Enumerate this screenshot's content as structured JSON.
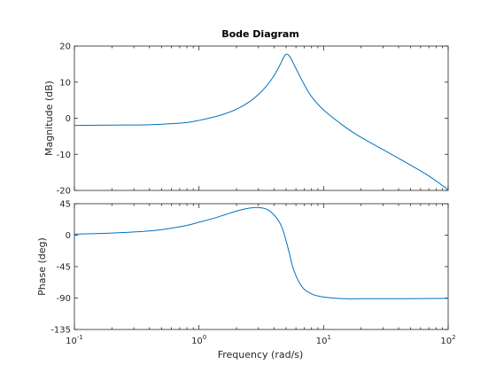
{
  "chart_data": {
    "title": "Bode Diagram",
    "xlabel": "Frequency  (rad/s)",
    "x_scale": "log",
    "xlim": [
      0.1,
      100
    ],
    "x_ticks": [
      {
        "value": 0.1,
        "base": "10",
        "exp": "-1"
      },
      {
        "value": 1,
        "base": "10",
        "exp": "0"
      },
      {
        "value": 10,
        "base": "10",
        "exp": "1"
      },
      {
        "value": 100,
        "base": "10",
        "exp": "2"
      }
    ],
    "series_color": "#0072bd",
    "panels": [
      {
        "type": "line",
        "ylabel": "Magnitude (dB)",
        "ylim": [
          -20,
          20
        ],
        "y_ticks": [
          -20,
          -10,
          0,
          10,
          20
        ],
        "points": [
          [
            0.1,
            -2.0
          ],
          [
            0.2,
            -1.9
          ],
          [
            0.4,
            -1.8
          ],
          [
            0.6,
            -1.5
          ],
          [
            0.8,
            -1.2
          ],
          [
            1.0,
            -0.6
          ],
          [
            1.3,
            0.3
          ],
          [
            1.6,
            1.2
          ],
          [
            2.0,
            2.5
          ],
          [
            2.5,
            4.4
          ],
          [
            3.0,
            6.6
          ],
          [
            3.5,
            9.0
          ],
          [
            4.0,
            11.8
          ],
          [
            4.5,
            15.0
          ],
          [
            4.8,
            17.0
          ],
          [
            5.0,
            17.7
          ],
          [
            5.2,
            17.6
          ],
          [
            5.5,
            16.4
          ],
          [
            6.0,
            13.8
          ],
          [
            7.0,
            9.3
          ],
          [
            8.0,
            6.0
          ],
          [
            10.0,
            2.3
          ],
          [
            15.0,
            -2.5
          ],
          [
            20.0,
            -5.3
          ],
          [
            30.0,
            -8.7
          ],
          [
            50.0,
            -13.0
          ],
          [
            70.0,
            -16.0
          ],
          [
            100.0,
            -19.8
          ]
        ]
      },
      {
        "type": "line",
        "ylabel": "Phase (deg)",
        "ylim": [
          -135,
          45
        ],
        "y_ticks": [
          -135,
          -90,
          -45,
          0,
          45
        ],
        "points": [
          [
            0.1,
            1.5
          ],
          [
            0.2,
            3.0
          ],
          [
            0.4,
            6.0
          ],
          [
            0.6,
            10.0
          ],
          [
            0.8,
            14.0
          ],
          [
            1.0,
            18.5
          ],
          [
            1.3,
            24.0
          ],
          [
            1.6,
            29.0
          ],
          [
            2.0,
            34.5
          ],
          [
            2.5,
            38.5
          ],
          [
            3.0,
            39.5
          ],
          [
            3.5,
            37.0
          ],
          [
            4.0,
            29.0
          ],
          [
            4.5,
            16.0
          ],
          [
            4.8,
            3.0
          ],
          [
            5.0,
            -8.0
          ],
          [
            5.3,
            -25.0
          ],
          [
            5.6,
            -43.0
          ],
          [
            6.0,
            -58.0
          ],
          [
            6.5,
            -70.0
          ],
          [
            7.0,
            -77.5
          ],
          [
            8.0,
            -84.0
          ],
          [
            9.0,
            -87.0
          ],
          [
            10.0,
            -88.5
          ],
          [
            12.0,
            -90.0
          ],
          [
            15.0,
            -91.0
          ],
          [
            20.0,
            -91.0
          ],
          [
            40.0,
            -91.0
          ],
          [
            100.0,
            -90.5
          ]
        ]
      }
    ]
  }
}
